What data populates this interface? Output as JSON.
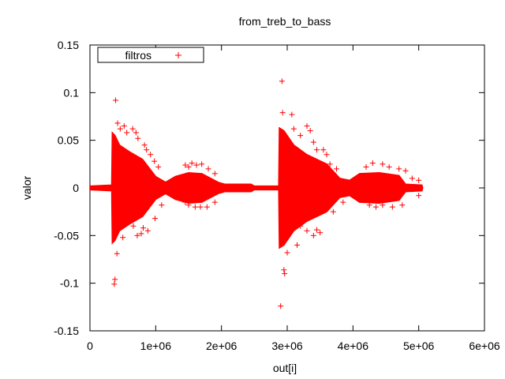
{
  "chart_data": {
    "type": "scatter",
    "title": "from_treb_to_bass",
    "xlabel": "out[i]",
    "ylabel": "valor",
    "xlim": [
      0,
      6000000
    ],
    "ylim": [
      -0.15,
      0.15
    ],
    "x_ticks": [
      {
        "value": 0,
        "label": "0"
      },
      {
        "value": 1000000,
        "label": "1e+06"
      },
      {
        "value": 2000000,
        "label": "2e+06"
      },
      {
        "value": 3000000,
        "label": "3e+06"
      },
      {
        "value": 4000000,
        "label": "4e+06"
      },
      {
        "value": 5000000,
        "label": "5e+06"
      },
      {
        "value": 6000000,
        "label": "6e+06"
      }
    ],
    "y_ticks": [
      {
        "value": -0.15,
        "label": "-0.15"
      },
      {
        "value": -0.1,
        "label": "-0.1"
      },
      {
        "value": -0.05,
        "label": "-0.05"
      },
      {
        "value": 0,
        "label": "0"
      },
      {
        "value": 0.05,
        "label": "0.05"
      },
      {
        "value": 0.1,
        "label": "0.1"
      },
      {
        "value": 0.15,
        "label": "0.15"
      }
    ],
    "grid": false,
    "legend_position": "top-left",
    "series": [
      {
        "name": "filtros",
        "color": "#ff0000",
        "marker": "plus",
        "envelope": [
          [
            0,
            0.002
          ],
          [
            330000,
            0.003
          ],
          [
            340000,
            0.058
          ],
          [
            380000,
            0.055
          ],
          [
            450000,
            0.045
          ],
          [
            600000,
            0.038
          ],
          [
            800000,
            0.03
          ],
          [
            1000000,
            0.012
          ],
          [
            1150000,
            0.006
          ],
          [
            1300000,
            0.012
          ],
          [
            1500000,
            0.016
          ],
          [
            1700000,
            0.015
          ],
          [
            1950000,
            0.006
          ],
          [
            2050000,
            0.004
          ],
          [
            2450000,
            0.004
          ],
          [
            2500000,
            0.002
          ],
          [
            2870000,
            0.002
          ],
          [
            2880000,
            0.063
          ],
          [
            2950000,
            0.06
          ],
          [
            3100000,
            0.045
          ],
          [
            3300000,
            0.035
          ],
          [
            3600000,
            0.025
          ],
          [
            3800000,
            0.01
          ],
          [
            3950000,
            0.008
          ],
          [
            4100000,
            0.015
          ],
          [
            4400000,
            0.016
          ],
          [
            4700000,
            0.013
          ],
          [
            4800000,
            0.004
          ],
          [
            5050000,
            0.003
          ],
          [
            5060000,
            0
          ]
        ],
        "points": [
          [
            390000,
            0.092
          ],
          [
            380000,
            -0.096
          ],
          [
            370000,
            -0.101
          ],
          [
            420000,
            0.068
          ],
          [
            410000,
            -0.069
          ],
          [
            460000,
            0.062
          ],
          [
            520000,
            0.065
          ],
          [
            560000,
            0.058
          ],
          [
            650000,
            0.062
          ],
          [
            700000,
            0.058
          ],
          [
            730000,
            0.052
          ],
          [
            780000,
            -0.048
          ],
          [
            720000,
            -0.05
          ],
          [
            830000,
            0.045
          ],
          [
            860000,
            0.04
          ],
          [
            880000,
            -0.045
          ],
          [
            920000,
            0.035
          ],
          [
            980000,
            0.028
          ],
          [
            990000,
            -0.032
          ],
          [
            1040000,
            0.022
          ],
          [
            1090000,
            -0.018
          ],
          [
            660000,
            -0.04
          ],
          [
            810000,
            -0.042
          ],
          [
            500000,
            -0.052
          ],
          [
            1450000,
            0.024
          ],
          [
            1500000,
            0.022
          ],
          [
            1550000,
            0.026
          ],
          [
            1620000,
            0.024
          ],
          [
            1700000,
            0.025
          ],
          [
            1800000,
            0.02
          ],
          [
            1600000,
            -0.02
          ],
          [
            1500000,
            -0.018
          ],
          [
            1680000,
            -0.02
          ],
          [
            1780000,
            -0.02
          ],
          [
            1450000,
            -0.015
          ],
          [
            1900000,
            0.015
          ],
          [
            1900000,
            -0.015
          ],
          [
            2920000,
            0.112
          ],
          [
            2930000,
            0.079
          ],
          [
            3070000,
            0.077
          ],
          [
            2900000,
            -0.124
          ],
          [
            2950000,
            -0.086
          ],
          [
            2960000,
            -0.09
          ],
          [
            3000000,
            -0.068
          ],
          [
            3100000,
            0.062
          ],
          [
            3200000,
            0.055
          ],
          [
            3300000,
            0.065
          ],
          [
            3350000,
            0.06
          ],
          [
            3400000,
            0.048
          ],
          [
            3450000,
            0.04
          ],
          [
            3550000,
            0.04
          ],
          [
            3600000,
            0.035
          ],
          [
            3150000,
            -0.06
          ],
          [
            3300000,
            -0.045
          ],
          [
            3400000,
            -0.05
          ],
          [
            3450000,
            -0.044
          ],
          [
            3500000,
            -0.047
          ],
          [
            3200000,
            -0.04
          ],
          [
            3650000,
            0.025
          ],
          [
            3700000,
            -0.025
          ],
          [
            3750000,
            0.02
          ],
          [
            3850000,
            -0.015
          ],
          [
            4200000,
            0.022
          ],
          [
            4300000,
            0.026
          ],
          [
            4450000,
            0.025
          ],
          [
            4550000,
            0.022
          ],
          [
            4700000,
            0.02
          ],
          [
            4800000,
            0.018
          ],
          [
            4250000,
            -0.018
          ],
          [
            4350000,
            -0.02
          ],
          [
            4450000,
            -0.018
          ],
          [
            4600000,
            -0.02
          ],
          [
            4750000,
            -0.018
          ],
          [
            4900000,
            0.01
          ],
          [
            5000000,
            0.008
          ],
          [
            5000000,
            -0.008
          ],
          [
            4100000,
            -0.012
          ]
        ]
      }
    ]
  }
}
